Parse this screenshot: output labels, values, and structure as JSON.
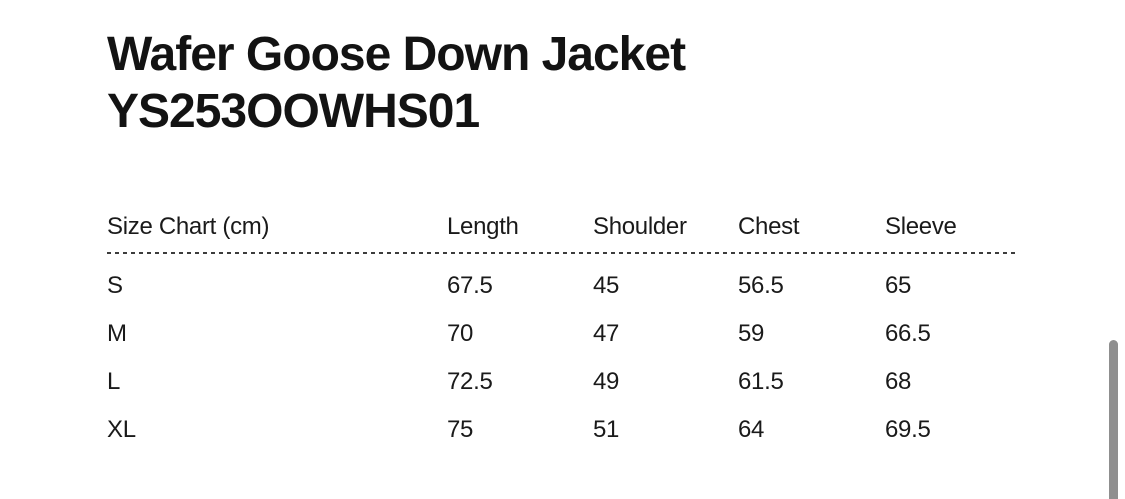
{
  "page": {
    "title_line1": "Wafer Goose Down Jacket",
    "title_line2": "YS253OOWHS01"
  },
  "size_chart": {
    "caption": "Size Chart (cm)",
    "columns": [
      "Length",
      "Shoulder",
      "Chest",
      "Sleeve"
    ],
    "rows": [
      {
        "size": "S",
        "values": [
          "67.5",
          "45",
          "56.5",
          "65"
        ]
      },
      {
        "size": "M",
        "values": [
          "70",
          "47",
          "59",
          "66.5"
        ]
      },
      {
        "size": "L",
        "values": [
          "72.5",
          "49",
          "61.5",
          "68"
        ]
      },
      {
        "size": "XL",
        "values": [
          "75",
          "51",
          "64",
          "69.5"
        ]
      }
    ]
  },
  "colors": {
    "background": "#ffffff",
    "text": "#161616",
    "divider": "#3c3c3c",
    "scrollbar_thumb": "#8f8f8f"
  }
}
